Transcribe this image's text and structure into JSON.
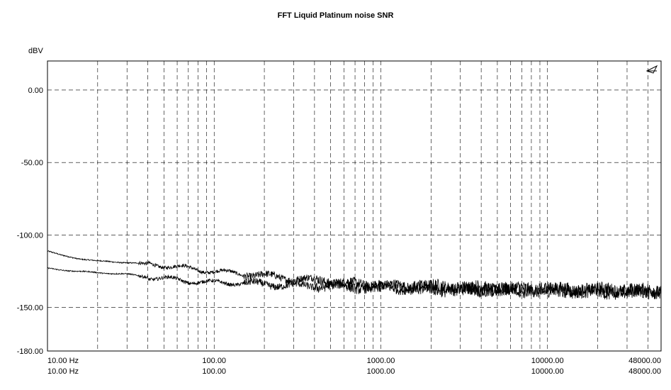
{
  "chart_data": {
    "type": "line",
    "title": "FFT Liquid Platinum noise SNR",
    "ylabel": "dBV",
    "xlabel": "",
    "x_scale": "log",
    "xlim": [
      10,
      48000
    ],
    "ylim": [
      -180,
      20
    ],
    "grid": true,
    "y_ticks": [
      {
        "value": 0,
        "label": "0.00"
      },
      {
        "value": -50,
        "label": "-50.00"
      },
      {
        "value": -100,
        "label": "-100.00"
      },
      {
        "value": -150,
        "label": "-150.00"
      },
      {
        "value": -180,
        "label": "-180.00"
      }
    ],
    "x_ticks": [
      {
        "value": 10,
        "label": "10.00 Hz",
        "label2": "10.00 Hz"
      },
      {
        "value": 100,
        "label": "100.00",
        "label2": "100.00"
      },
      {
        "value": 1000,
        "label": "1000.00",
        "label2": "1000.00"
      },
      {
        "value": 10000,
        "label": "10000.00",
        "label2": "10000.00"
      },
      {
        "value": 48000,
        "label": "48000.00",
        "label2": "48000.00"
      }
    ],
    "series": [
      {
        "color": "#000000",
        "x": [
          10,
          12,
          15,
          20,
          30,
          40,
          50,
          60,
          70,
          80,
          100,
          150,
          200,
          300,
          500,
          700,
          1000,
          2000,
          5000,
          10000,
          20000,
          48000
        ],
        "y": [
          -111,
          -114,
          -116,
          -118,
          -119,
          -120,
          -121,
          -122,
          -123,
          -124,
          -125,
          -127,
          -128,
          -130,
          -132,
          -134,
          -135,
          -136,
          -137,
          -138,
          -138,
          -139
        ]
      },
      {
        "color": "#000000",
        "x": [
          10,
          12,
          15,
          20,
          30,
          40,
          50,
          60,
          70,
          80,
          100,
          150,
          200,
          300,
          500,
          700,
          1000,
          2000,
          5000,
          10000,
          20000,
          48000
        ],
        "y": [
          -123,
          -124,
          -125,
          -126,
          -127,
          -129,
          -130,
          -131,
          -132,
          -132,
          -133,
          -133,
          -134,
          -135,
          -135,
          -136,
          -136,
          -137,
          -138,
          -138,
          -139,
          -139
        ]
      }
    ]
  },
  "marker": {
    "name": "cursor-triangle-icon"
  }
}
